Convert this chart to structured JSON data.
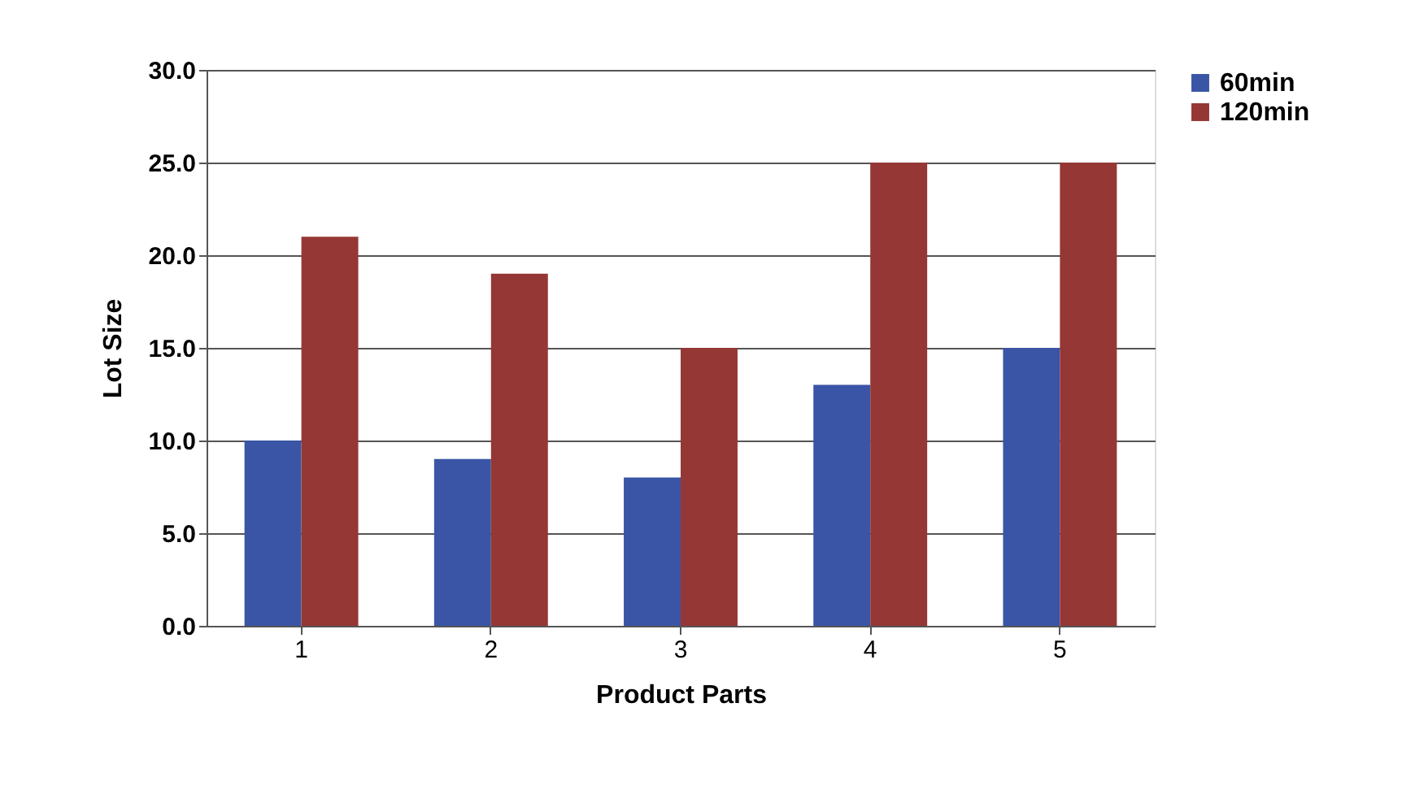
{
  "chart_data": {
    "type": "bar",
    "xlabel": "Product Parts",
    "ylabel": "Lot Size",
    "categories": [
      "1",
      "2",
      "3",
      "4",
      "5"
    ],
    "series": [
      {
        "name": "60min",
        "color": "#3a55a5",
        "values": [
          10,
          9,
          8,
          13,
          15
        ]
      },
      {
        "name": "120min",
        "color": "#953735",
        "values": [
          21,
          19,
          15,
          25,
          25
        ]
      }
    ],
    "ylim": [
      0,
      30
    ],
    "yticks": [
      {
        "value": 0,
        "label": "0.0"
      },
      {
        "value": 5,
        "label": "5.0"
      },
      {
        "value": 10,
        "label": "10.0"
      },
      {
        "value": 15,
        "label": "15.0"
      },
      {
        "value": 20,
        "label": "20.0"
      },
      {
        "value": 25,
        "label": "25.0"
      },
      {
        "value": 30,
        "label": "30.0"
      }
    ],
    "grid": "y",
    "legend": "right"
  }
}
